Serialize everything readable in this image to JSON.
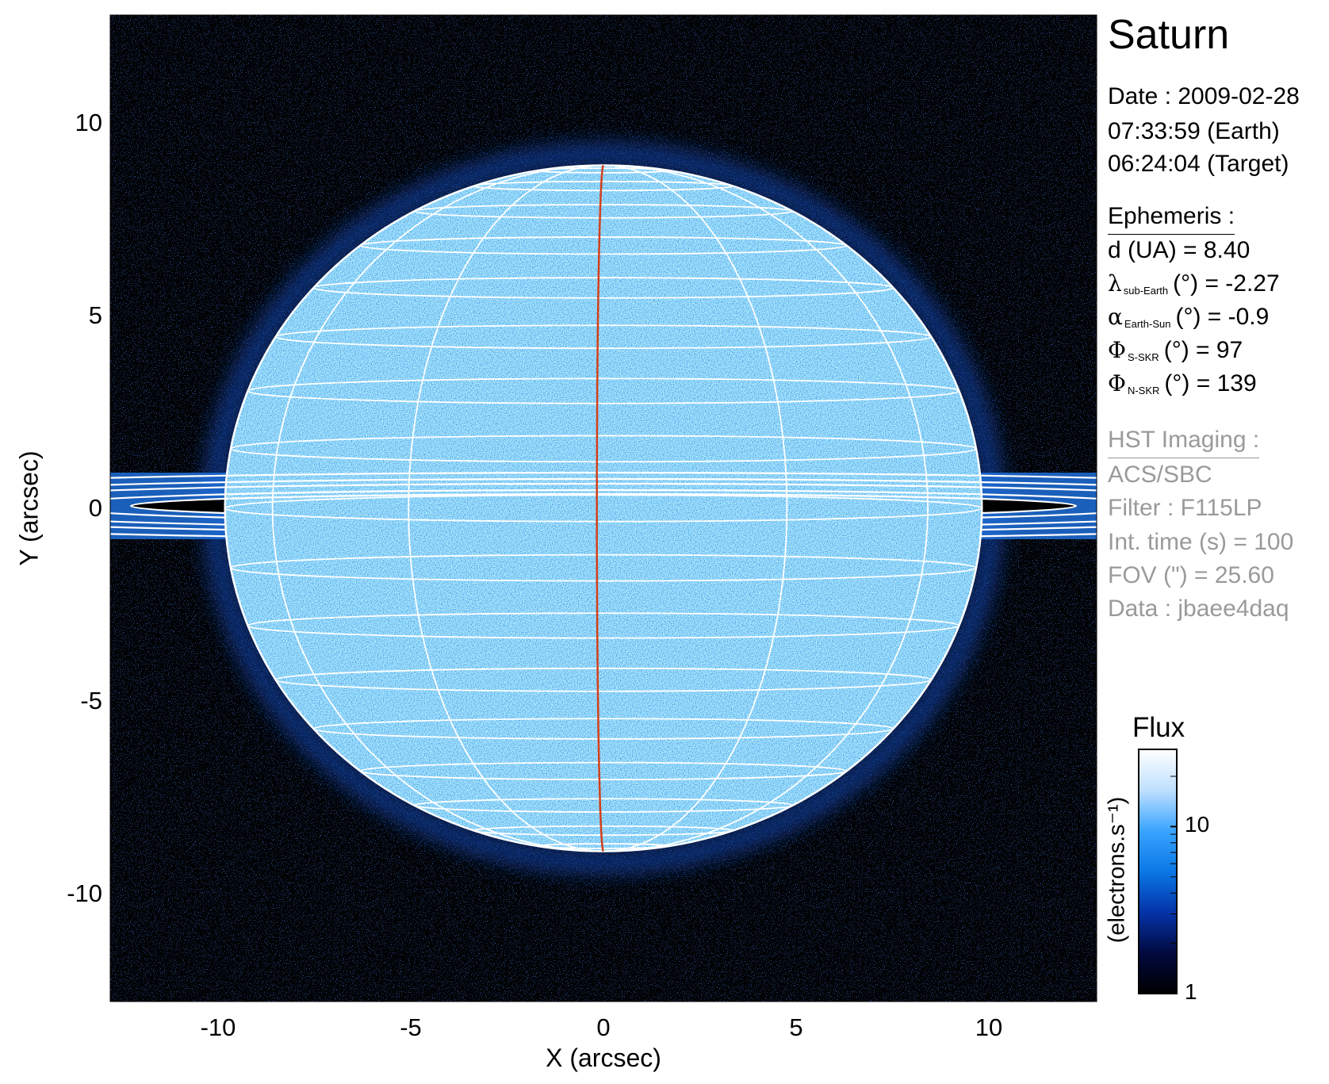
{
  "panel": {
    "title": "Saturn",
    "date_line": "Date : 2009-02-28",
    "earth_time": "07:33:59 (Earth)",
    "target_time": "06:24:04 (Target)",
    "ephemeris_header": "Ephemeris :",
    "ephemeris": [
      {
        "symbol": "d",
        "sub": "",
        "rest": " (UA)    = 8.40"
      },
      {
        "symbol": "λ",
        "sub": "sub-Earth",
        "rest": "(°) = -2.27"
      },
      {
        "symbol": "α",
        "sub": "Earth-Sun",
        "rest": "(°) = -0.9"
      },
      {
        "symbol": "Φ",
        "sub": "S-SKR",
        "rest": "(°)   = 97"
      },
      {
        "symbol": "Φ",
        "sub": "N-SKR",
        "rest": "(°)   = 139"
      }
    ],
    "imaging_header": "HST Imaging :",
    "imaging": [
      "ACS/SBC",
      "Filter : F115LP",
      "Int. time (s) = 100",
      "FOV (\") = 25.60",
      "Data : jbaee4daq"
    ]
  },
  "chart_data": {
    "type": "heatmap",
    "title": "",
    "xlabel": "X (arcsec)",
    "ylabel": "Y (arcsec)",
    "xlim": [
      -12.8,
      12.8
    ],
    "ylim": [
      -12.8,
      12.8
    ],
    "xticks": [
      -10,
      -5,
      0,
      5,
      10
    ],
    "yticks": [
      -10,
      -5,
      0,
      5,
      10
    ],
    "xtick_labels": [
      "-10",
      "-5",
      "0",
      "5",
      "10"
    ],
    "ytick_labels": [
      "-10",
      "-5",
      "0",
      "5",
      "10"
    ],
    "planet": {
      "equatorial_radius_arcsec": 9.82,
      "polar_radius_arcsec": 8.9,
      "grid_lat_step_deg": 10,
      "grid_lon_offsets_deg": [
        -61,
        -31,
        -1,
        29,
        59
      ]
    },
    "grid_color": "#ffffff",
    "central_meridian_color": "#d2401a",
    "colorbar": {
      "title": "Flux",
      "label": "(electrons.s⁻¹)",
      "scale": "log",
      "range": [
        1,
        29
      ],
      "ticks": [
        1,
        10
      ],
      "tick_labels": [
        "1",
        "10"
      ],
      "colors": [
        "#000000",
        "#020a40",
        "#0533a8",
        "#0a78e6",
        "#3aa4ff",
        "#bfe0ff",
        "#ffffff"
      ]
    }
  }
}
